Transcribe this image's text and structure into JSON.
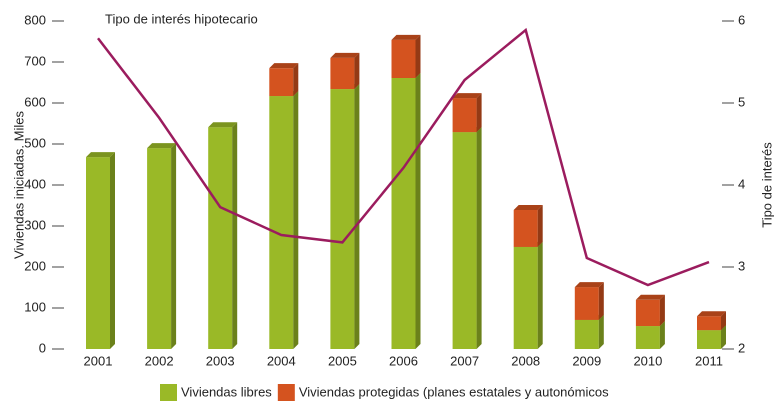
{
  "chart_data": {
    "type": "bar",
    "stacked": true,
    "categories": [
      "2001",
      "2002",
      "2003",
      "2004",
      "2005",
      "2006",
      "2007",
      "2008",
      "2009",
      "2010",
      "2011"
    ],
    "series": [
      {
        "name": "Viviendas libres",
        "color": "#9ab927",
        "values": [
          468,
          490,
          541,
          617,
          634,
          661,
          529,
          249,
          71,
          56,
          46
        ]
      },
      {
        "name": "Viviendas protegidas (planes estatales y autonómicos",
        "color": "#d4531f",
        "values": [
          0,
          0,
          0,
          68,
          76,
          93,
          83,
          90,
          80,
          64,
          34
        ]
      },
      {
        "name": "Tipo de interés hipotecario",
        "type": "line",
        "axis": "y2",
        "color": "#9b1c5e",
        "values": [
          5.79,
          4.82,
          3.73,
          3.39,
          3.3,
          4.21,
          5.28,
          5.89,
          3.11,
          2.78,
          3.06
        ]
      }
    ],
    "ylabel": "Viviendas iniciadas. Miles",
    "y2label": "Tipo de interés",
    "ylim": [
      0,
      800
    ],
    "yticks": [
      0,
      100,
      200,
      300,
      400,
      500,
      600,
      700,
      800
    ],
    "y2lim": [
      2,
      6
    ],
    "y2ticks": [
      2,
      3,
      4,
      5,
      6
    ],
    "legend": "bottom"
  }
}
